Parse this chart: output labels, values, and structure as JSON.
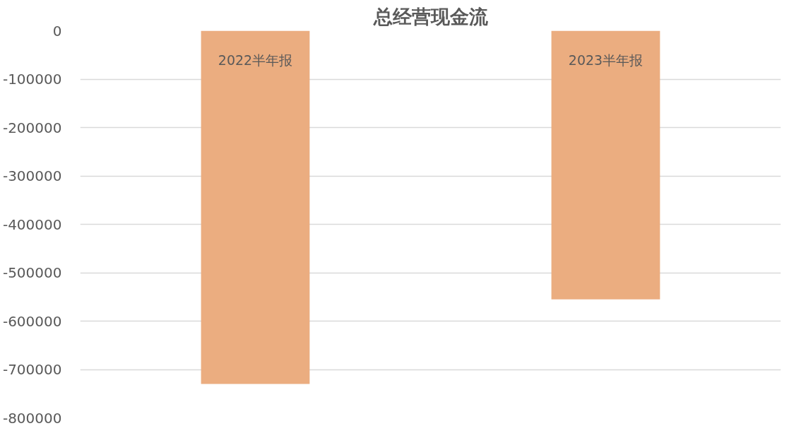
{
  "chart_data": {
    "type": "bar",
    "title": "总经营现金流",
    "categories": [
      "2022半年报",
      "2023半年报"
    ],
    "values": [
      -730000,
      -555000
    ],
    "color": "#ebad80",
    "ylim": [
      -800000,
      0
    ],
    "yticks": [
      0,
      -100000,
      -200000,
      -300000,
      -400000,
      -500000,
      -600000,
      -700000,
      -800000
    ],
    "grid": "y"
  }
}
